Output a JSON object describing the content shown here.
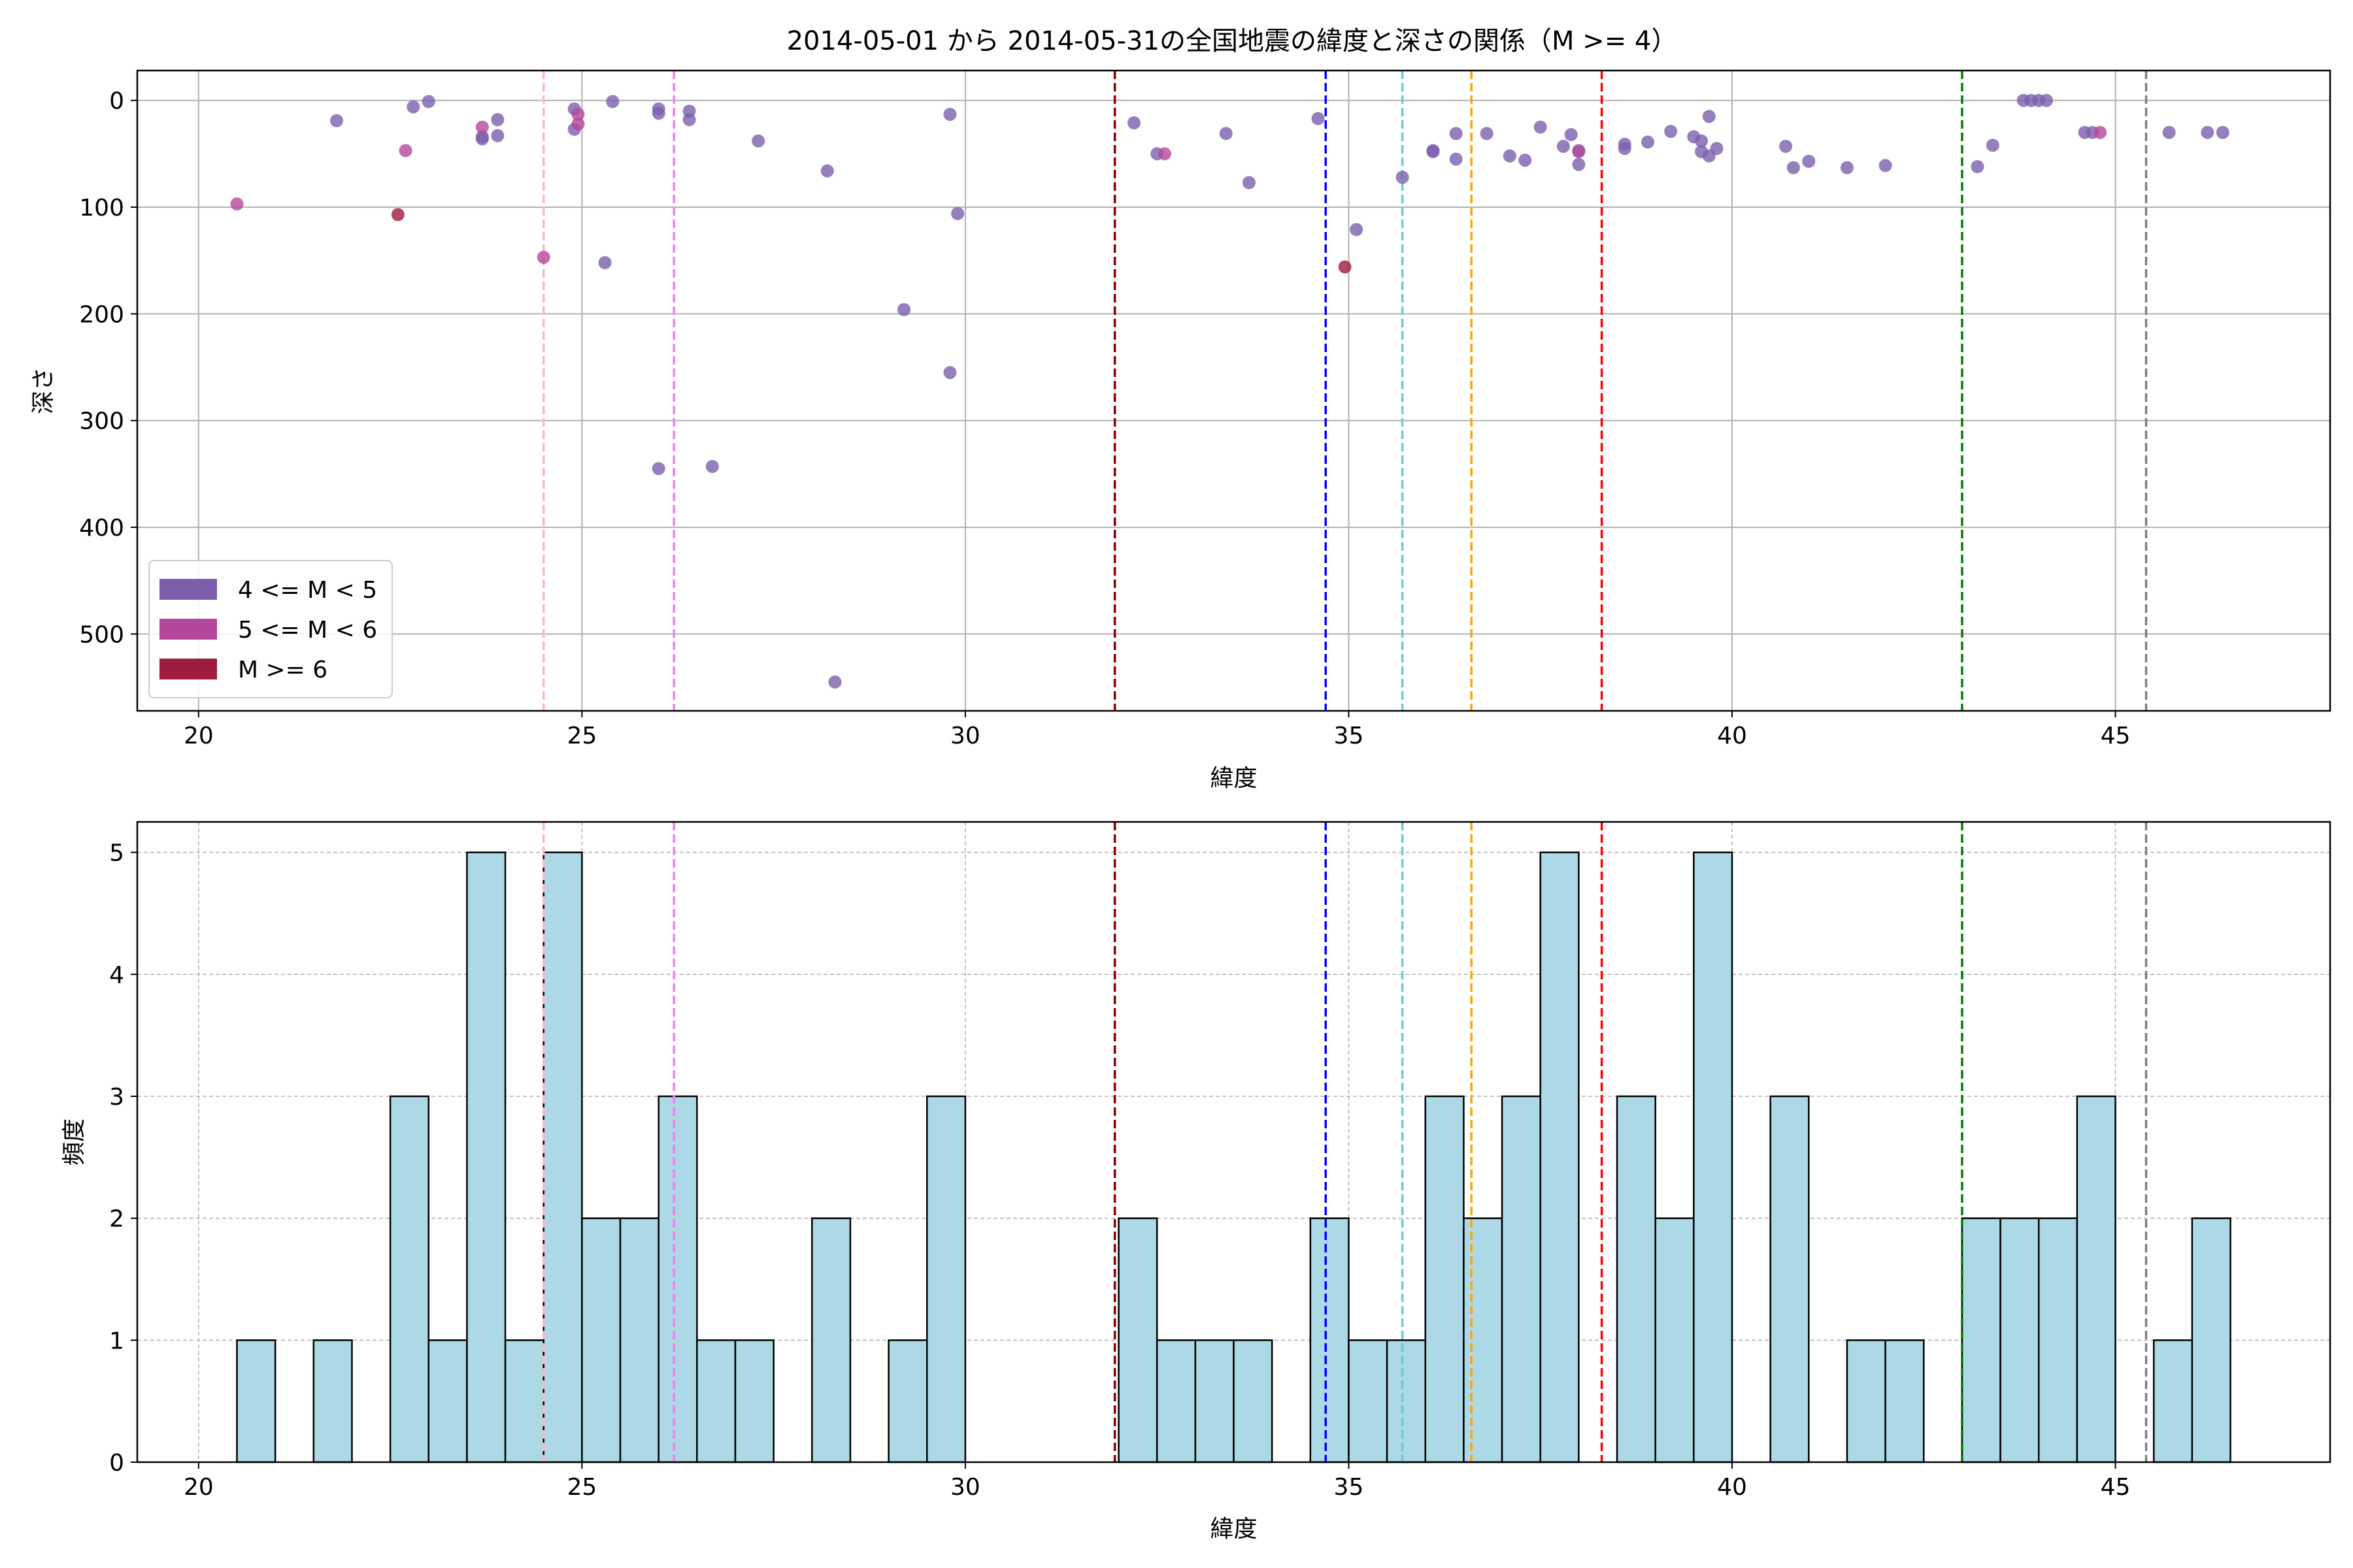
{
  "figure": {
    "title": "2014-05-01 から 2014-05-31の全国地震の緯度と深さの関係（M >= 4）"
  },
  "chart_data": [
    {
      "type": "scatter",
      "xlabel": "緯度",
      "ylabel": "深さ",
      "xlim": [
        19.2,
        47.8
      ],
      "ylim": [
        572,
        -28
      ],
      "y_inverted": true,
      "grid": true,
      "xticks": [
        "20",
        "25",
        "30",
        "35",
        "40",
        "45"
      ],
      "yticks": [
        "0",
        "100",
        "200",
        "300",
        "400",
        "500"
      ],
      "legend_position": "lower-left",
      "legend": [
        {
          "label": "4 <= M < 5",
          "color": "#7b5fad"
        },
        {
          "label": "5 <= M < 6",
          "color": "#b4479b"
        },
        {
          "label": "M >= 6",
          "color": "#9d1c3f"
        }
      ],
      "series": [
        {
          "name": "4 <= M < 5",
          "color": "#7b5fad",
          "points": [
            [
              21.8,
              19
            ],
            [
              22.8,
              6
            ],
            [
              23.0,
              1
            ],
            [
              23.7,
              34
            ],
            [
              23.7,
              36
            ],
            [
              23.9,
              18
            ],
            [
              23.9,
              33
            ],
            [
              24.9,
              8
            ],
            [
              24.9,
              27
            ],
            [
              25.3,
              152
            ],
            [
              25.4,
              1
            ],
            [
              26.0,
              8
            ],
            [
              26.0,
              345
            ],
            [
              26.0,
              12
            ],
            [
              26.4,
              10
            ],
            [
              26.4,
              18
            ],
            [
              26.7,
              343
            ],
            [
              27.3,
              38
            ],
            [
              28.2,
              66
            ],
            [
              28.3,
              545
            ],
            [
              29.2,
              196
            ],
            [
              29.8,
              255
            ],
            [
              29.8,
              13
            ],
            [
              29.9,
              106
            ],
            [
              32.2,
              21
            ],
            [
              32.5,
              50
            ],
            [
              33.4,
              31
            ],
            [
              33.7,
              77
            ],
            [
              34.6,
              17
            ],
            [
              35.1,
              121
            ],
            [
              35.7,
              72
            ],
            [
              36.1,
              47
            ],
            [
              36.1,
              48
            ],
            [
              36.4,
              31
            ],
            [
              36.4,
              55
            ],
            [
              36.8,
              31
            ],
            [
              37.1,
              52
            ],
            [
              37.3,
              56
            ],
            [
              37.5,
              25
            ],
            [
              37.8,
              43
            ],
            [
              37.9,
              32
            ],
            [
              38.0,
              60
            ],
            [
              38.0,
              47
            ],
            [
              38.6,
              41
            ],
            [
              38.6,
              45
            ],
            [
              38.9,
              39
            ],
            [
              39.2,
              29
            ],
            [
              39.5,
              34
            ],
            [
              39.6,
              48
            ],
            [
              39.6,
              38
            ],
            [
              39.7,
              15
            ],
            [
              39.7,
              52
            ],
            [
              39.8,
              45
            ],
            [
              40.7,
              43
            ],
            [
              40.8,
              63
            ],
            [
              41.0,
              57
            ],
            [
              41.5,
              63
            ],
            [
              42.0,
              61
            ],
            [
              43.2,
              62
            ],
            [
              43.4,
              42
            ],
            [
              43.8,
              0
            ],
            [
              43.9,
              0
            ],
            [
              44.0,
              0
            ],
            [
              44.1,
              0
            ],
            [
              44.6,
              30
            ],
            [
              44.7,
              30
            ],
            [
              45.7,
              30
            ],
            [
              46.2,
              30
            ],
            [
              46.4,
              30
            ]
          ]
        },
        {
          "name": "5 <= M < 6",
          "color": "#b4479b",
          "points": [
            [
              20.5,
              97
            ],
            [
              22.7,
              47
            ],
            [
              23.7,
              25
            ],
            [
              24.5,
              147
            ],
            [
              24.95,
              13
            ],
            [
              24.95,
              22
            ],
            [
              32.6,
              50
            ],
            [
              38.0,
              48
            ],
            [
              44.8,
              30
            ]
          ]
        },
        {
          "name": "M >= 6",
          "color": "#9d1c3f",
          "points": [
            [
              22.6,
              107
            ],
            [
              34.95,
              156
            ]
          ]
        }
      ],
      "vlines": [
        {
          "x": 24.5,
          "color": "#ffb6c1"
        },
        {
          "x": 26.2,
          "color": "#ee82ee"
        },
        {
          "x": 31.95,
          "color": "#8b0000"
        },
        {
          "x": 34.7,
          "color": "#0000ff"
        },
        {
          "x": 35.7,
          "color": "#6ccad6"
        },
        {
          "x": 36.6,
          "color": "#ffa500"
        },
        {
          "x": 38.3,
          "color": "#ff0000"
        },
        {
          "x": 43.0,
          "color": "#008000"
        },
        {
          "x": 45.4,
          "color": "#808080"
        }
      ]
    },
    {
      "type": "bar",
      "xlabel": "緯度",
      "ylabel": "頻度",
      "xlim": [
        19.2,
        47.8
      ],
      "ylim": [
        0,
        5.25
      ],
      "grid": true,
      "bar_color": "#add8e6",
      "bar_edge_color": "#000000",
      "bin_start": 20.5,
      "bin_width": 0.5,
      "values": [
        1,
        0,
        1,
        0,
        3,
        1,
        5,
        1,
        5,
        2,
        2,
        3,
        1,
        1,
        0,
        2,
        0,
        1,
        3,
        0,
        0,
        0,
        0,
        2,
        1,
        1,
        1,
        0,
        2,
        1,
        1,
        3,
        2,
        3,
        5,
        0,
        3,
        2,
        5,
        0,
        3,
        0,
        1,
        1,
        0,
        2,
        2,
        2,
        3,
        0,
        1,
        2
      ],
      "xticks": [
        "20",
        "25",
        "30",
        "35",
        "40",
        "45"
      ],
      "yticks": [
        "0",
        "1",
        "2",
        "3",
        "4",
        "5"
      ],
      "vlines": [
        {
          "x": 24.5,
          "color": "#ffb6c1"
        },
        {
          "x": 26.2,
          "color": "#ee82ee"
        },
        {
          "x": 31.95,
          "color": "#8b0000"
        },
        {
          "x": 34.7,
          "color": "#0000ff"
        },
        {
          "x": 35.7,
          "color": "#6ccad6"
        },
        {
          "x": 36.6,
          "color": "#ffa500"
        },
        {
          "x": 38.3,
          "color": "#ff0000"
        },
        {
          "x": 43.0,
          "color": "#008000"
        },
        {
          "x": 45.4,
          "color": "#808080"
        }
      ]
    }
  ]
}
